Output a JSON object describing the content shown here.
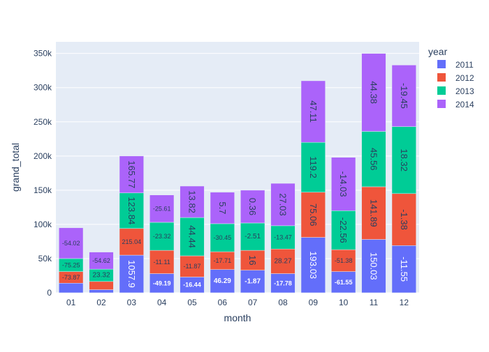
{
  "chart_data": {
    "type": "bar",
    "barmode": "stack",
    "xlabel": "month",
    "ylabel": "grand_total",
    "ylim": [
      0,
      367000
    ],
    "yticks": [
      0,
      50000,
      100000,
      150000,
      200000,
      250000,
      300000,
      350000
    ],
    "ytick_labels": [
      "0",
      "50k",
      "100k",
      "150k",
      "200k",
      "250k",
      "300k",
      "350k"
    ],
    "categories": [
      "01",
      "02",
      "03",
      "04",
      "05",
      "06",
      "07",
      "08",
      "09",
      "10",
      "11",
      "12"
    ],
    "legend_title": "year",
    "legend_position": "top-right",
    "grid": true,
    "series": [
      {
        "name": "2011",
        "color": "#636efa",
        "values": [
          14000,
          4500,
          55000,
          28000,
          23000,
          34000,
          33000,
          28000,
          81000,
          31000,
          78000,
          69000
        ],
        "labels": [
          "",
          "",
          "1057.9",
          "-49.19",
          "-16.44",
          "46.29",
          "-1.87",
          "-17.78",
          "193.03",
          "-61.55",
          "150.03",
          "-11.55"
        ]
      },
      {
        "name": "2012",
        "color": "#EF553B",
        "values": [
          17000,
          12000,
          39000,
          34000,
          31000,
          26000,
          29000,
          36000,
          66000,
          32000,
          77000,
          76000
        ],
        "labels": [
          "-73.87",
          "",
          "215.04",
          "-11.11",
          "-11.87",
          "-17.71",
          "16",
          "28.27",
          "75.06",
          "-51.38",
          "141.89",
          "-1.38"
        ]
      },
      {
        "name": "2013",
        "color": "#00cc96",
        "values": [
          19000,
          18000,
          52000,
          41000,
          56000,
          41000,
          40000,
          34000,
          73000,
          57000,
          81000,
          98000
        ],
        "labels": [
          "-75.25",
          "23.32",
          "123.84",
          "-23.32",
          "44.44",
          "-30.45",
          "-2.51",
          "-13.47",
          "119.2",
          "-22.56",
          "45.56",
          "18.32"
        ]
      },
      {
        "name": "2014",
        "color": "#ab63fa",
        "values": [
          45000,
          25000,
          54000,
          40000,
          46000,
          46000,
          48000,
          62000,
          90000,
          78000,
          114000,
          90000
        ],
        "labels": [
          "-54.02",
          "-54.62",
          "165.77",
          "-25.61",
          "13.82",
          "5.7",
          "0.36",
          "27.03",
          "47.11",
          "-14.03",
          "44.38",
          "-19.45"
        ]
      }
    ]
  }
}
